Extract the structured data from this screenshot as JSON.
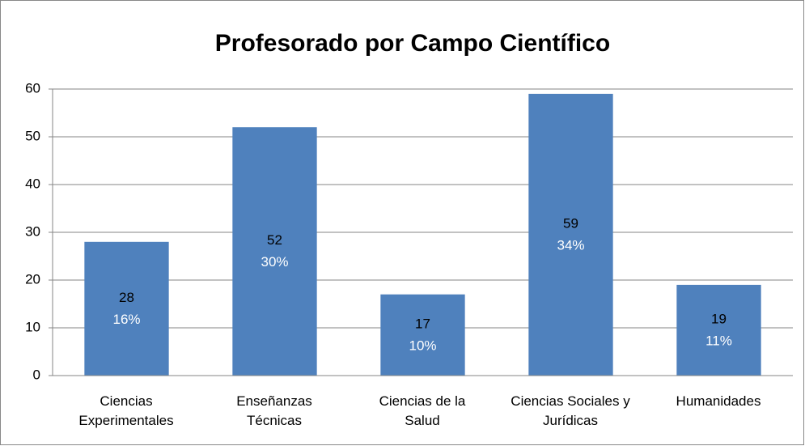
{
  "chart_data": {
    "type": "bar",
    "title": "Profesorado por Campo Científico",
    "categories": [
      "Ciencias\nExperimentales",
      "Enseñanzas\nTécnicas",
      "Ciencias de la\nSalud",
      "Ciencias Sociales y\nJurídicas",
      "Humanidades"
    ],
    "values": [
      28,
      52,
      17,
      59,
      19
    ],
    "percent_labels": [
      "16%",
      "30%",
      "10%",
      "34%",
      "11%"
    ],
    "color": "#4f81bd",
    "ylim": [
      0,
      60
    ],
    "yticks": [
      0,
      10,
      20,
      30,
      40,
      50,
      60
    ],
    "grid": true
  }
}
